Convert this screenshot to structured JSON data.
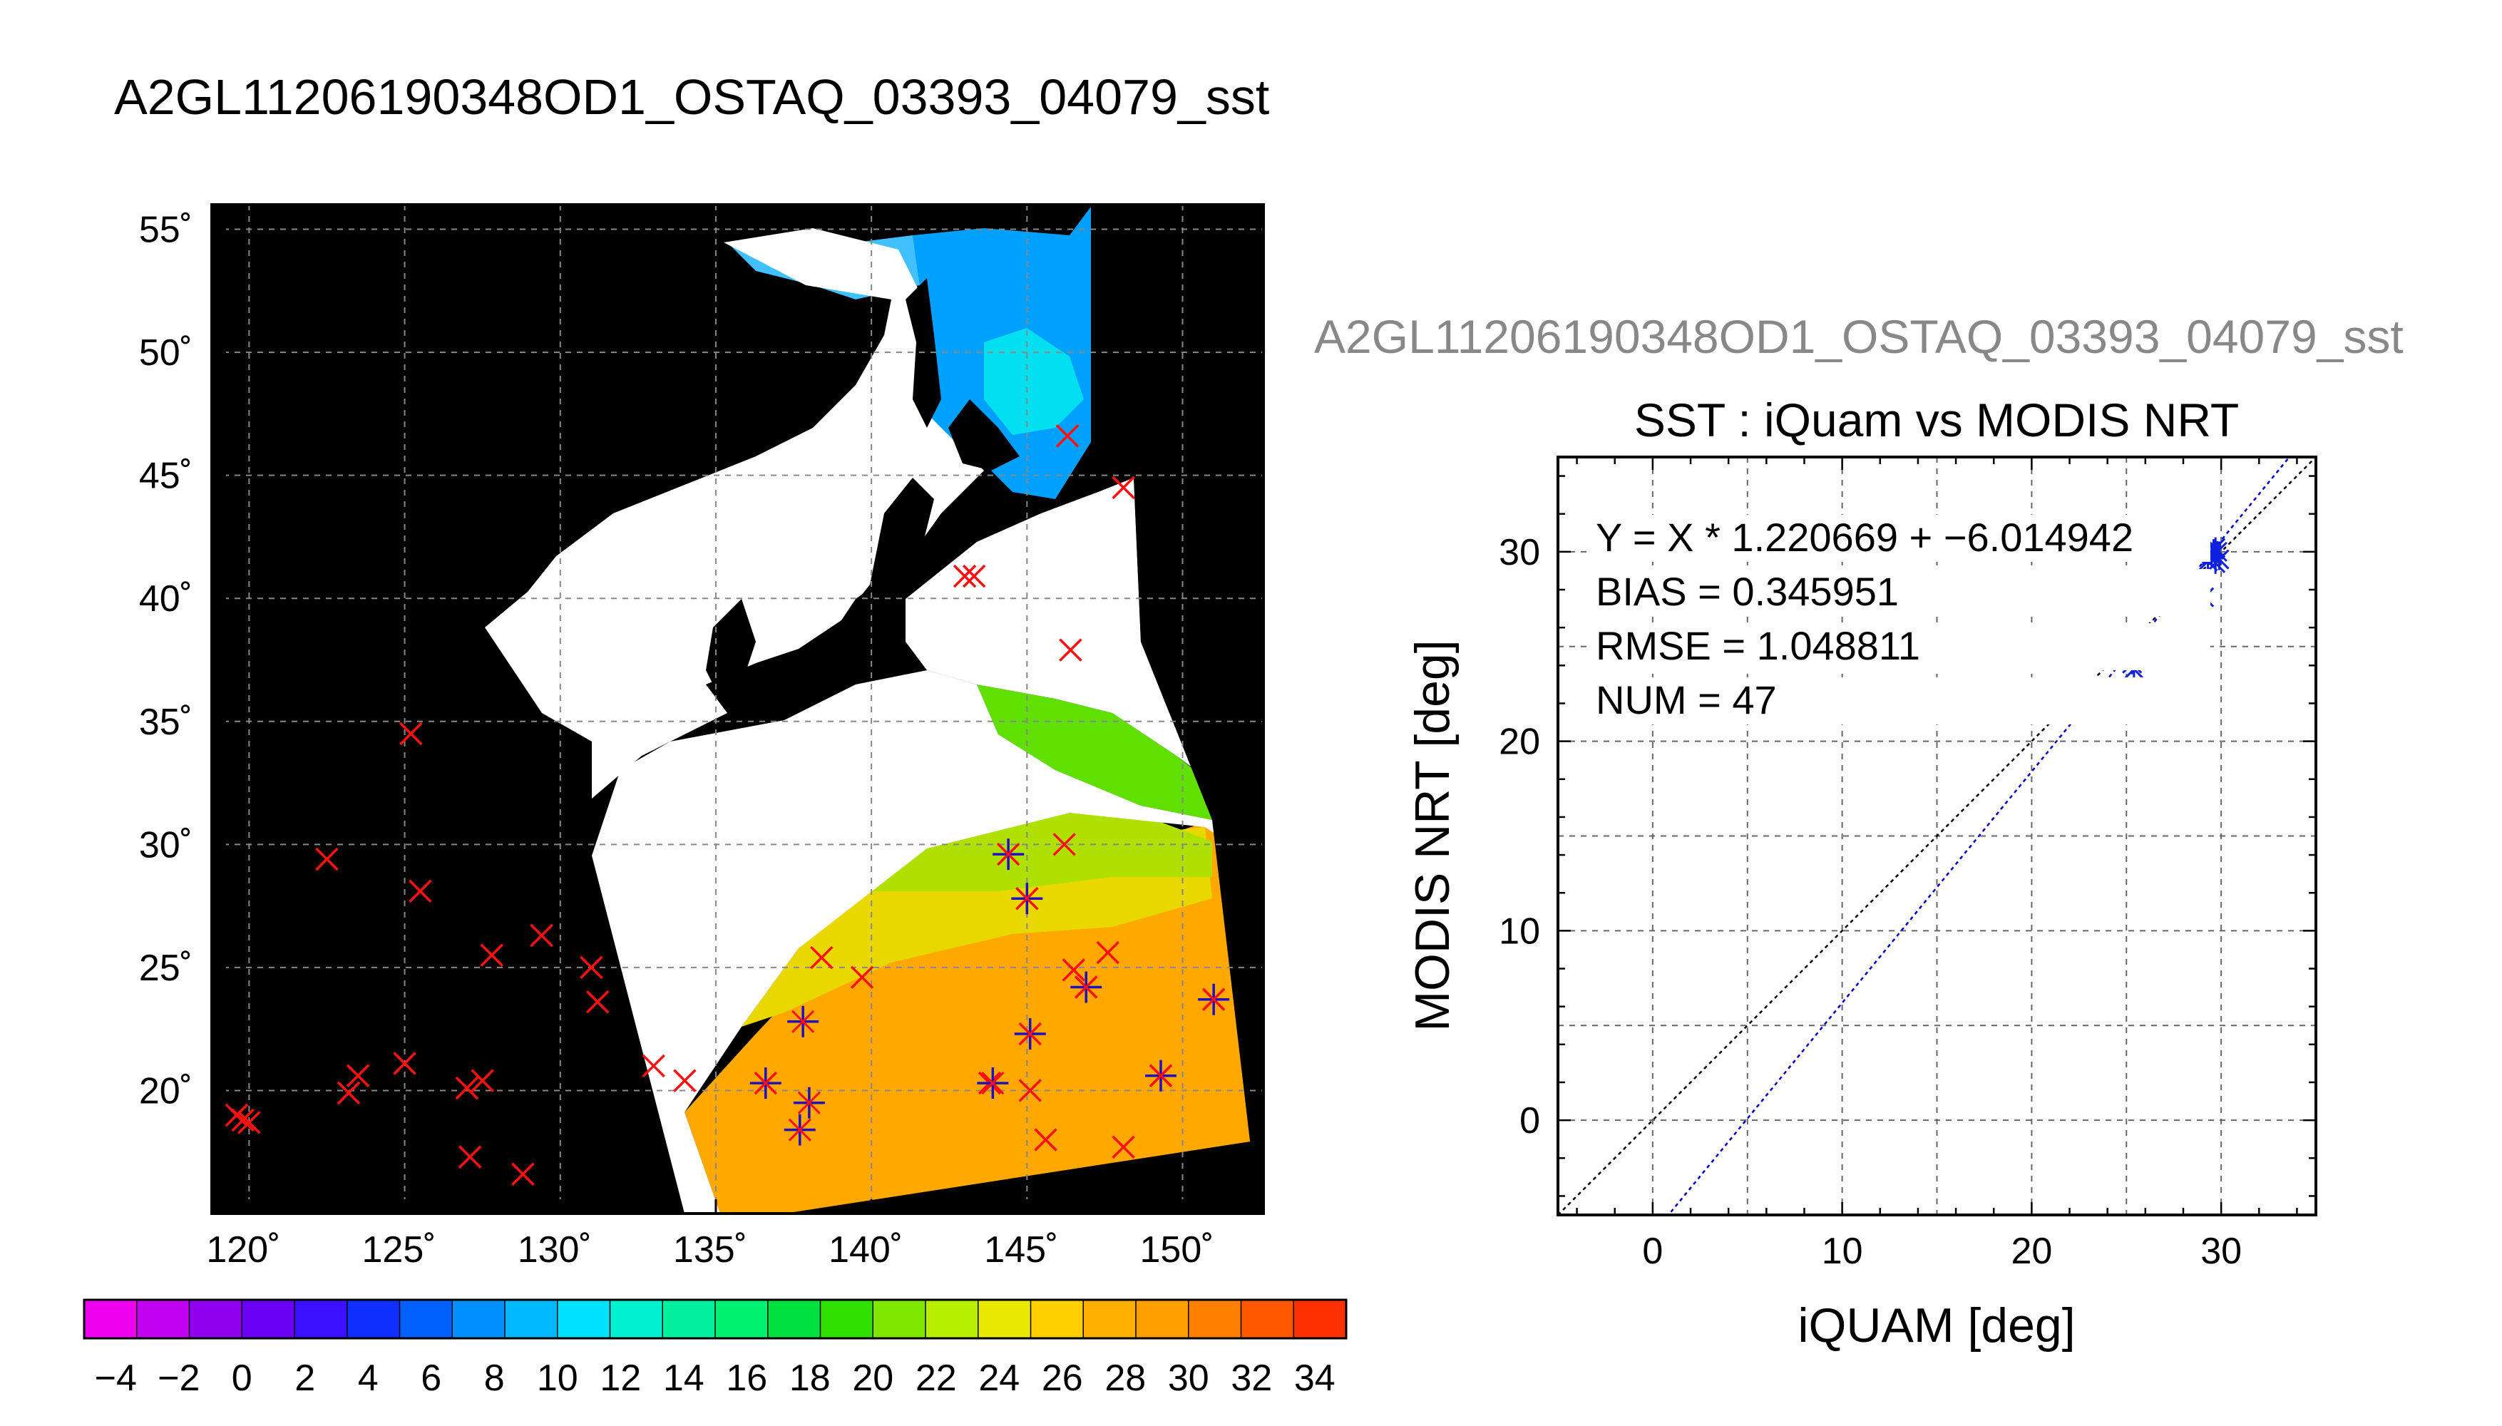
{
  "main_title": "A2GL11206190348OD1_OSTAQ_03393_04079_sst",
  "map": {
    "lat_ticks": [
      55,
      50,
      45,
      40,
      35,
      30,
      25,
      20
    ],
    "lon_ticks": [
      120,
      125,
      130,
      135,
      140,
      145,
      150
    ],
    "deg_symbol": "˚",
    "lon_range": [
      118.8,
      152.6
    ],
    "lat_range": [
      15.0,
      56.0
    ],
    "grid": true,
    "background_color": "#000000",
    "land_color": "#ffffff",
    "buoy_markers_red": [
      [
        119.6,
        19.0
      ],
      [
        119.8,
        18.8
      ],
      [
        120.0,
        18.7
      ],
      [
        122.5,
        29.4
      ],
      [
        123.2,
        19.9
      ],
      [
        123.5,
        20.6
      ],
      [
        125.0,
        21.1
      ],
      [
        125.2,
        34.5
      ],
      [
        125.5,
        28.1
      ],
      [
        127.0,
        20.1
      ],
      [
        127.1,
        17.3
      ],
      [
        127.5,
        20.4
      ],
      [
        127.8,
        25.5
      ],
      [
        128.8,
        16.6
      ],
      [
        129.4,
        26.3
      ],
      [
        131.0,
        25.0
      ],
      [
        131.2,
        23.6
      ],
      [
        133.0,
        21.0
      ],
      [
        134.0,
        20.4
      ],
      [
        136.6,
        20.3
      ],
      [
        138.4,
        25.4
      ],
      [
        139.7,
        24.6
      ],
      [
        143.0,
        40.9
      ],
      [
        143.3,
        40.9
      ],
      [
        143.8,
        20.3
      ],
      [
        144.4,
        29.6
      ],
      [
        145.0,
        27.8
      ],
      [
        145.1,
        22.3
      ],
      [
        145.1,
        20.0
      ],
      [
        145.6,
        18.0
      ],
      [
        146.2,
        30.0
      ],
      [
        146.3,
        46.6
      ],
      [
        146.4,
        37.9
      ],
      [
        146.5,
        24.9
      ],
      [
        146.9,
        24.2
      ],
      [
        147.6,
        25.6
      ],
      [
        148.1,
        44.5
      ],
      [
        148.1,
        17.7
      ],
      [
        149.3,
        20.6
      ],
      [
        151.0,
        23.7
      ]
    ],
    "matched_markers_blue": [
      [
        136.6,
        20.3
      ],
      [
        137.8,
        22.8
      ],
      [
        138.0,
        19.5
      ],
      [
        137.7,
        18.4
      ],
      [
        143.9,
        20.3
      ],
      [
        144.4,
        29.6
      ],
      [
        145.0,
        27.8
      ],
      [
        145.1,
        22.3
      ],
      [
        146.9,
        24.2
      ],
      [
        149.3,
        20.6
      ],
      [
        151.0,
        23.7
      ]
    ]
  },
  "colorbar": {
    "tick_labels": [
      "−4",
      "−2",
      "0",
      "2",
      "4",
      "6",
      "8",
      "10",
      "12",
      "14",
      "16",
      "18",
      "20",
      "22",
      "24",
      "26",
      "28",
      "30",
      "32",
      "34"
    ],
    "vmin": -5,
    "vmax": 35,
    "colors": [
      "#ee00ee",
      "#c000ee",
      "#9000ee",
      "#6a00f4",
      "#3a10ff",
      "#1030ff",
      "#0060ff",
      "#0090ff",
      "#00b8ff",
      "#00e0ff",
      "#00f0d0",
      "#00f0a0",
      "#00f070",
      "#00e040",
      "#30e000",
      "#80e800",
      "#b8ee00",
      "#e8e800",
      "#ffd000",
      "#ffb000",
      "#ffa000",
      "#ff8000",
      "#ff5800",
      "#ff3000"
    ]
  },
  "scatter": {
    "file_label": "A2GL11206190348OD1_OSTAQ_03393_04079_sst",
    "title": "SST : iQuam vs MODIS NRT",
    "xlabel": "iQUAM [deg]",
    "ylabel": "MODIS NRT [deg]",
    "stats": [
      "Y = X * 1.220669 + −6.014942",
      "BIAS = 0.345951",
      "RMSE = 1.048811",
      "NUM = 47"
    ]
  },
  "chart_data": {
    "type": "scatter",
    "title": "SST : iQuam vs MODIS NRT",
    "xlabel": "iQUAM [deg]",
    "ylabel": "MODIS NRT [deg]",
    "xlim": [
      -5,
      35
    ],
    "ylim": [
      -5,
      35
    ],
    "xticks": [
      0,
      10,
      20,
      30
    ],
    "yticks": [
      0,
      10,
      20,
      30
    ],
    "grid": true,
    "points": [
      [
        25.3,
        24.1
      ],
      [
        25.4,
        23.8
      ],
      [
        27.7,
        28.1
      ],
      [
        28.3,
        28.3
      ],
      [
        29.1,
        27.6
      ],
      [
        29.3,
        29.5
      ],
      [
        29.5,
        29.8
      ],
      [
        29.6,
        30.1
      ],
      [
        29.7,
        29.4
      ],
      [
        29.8,
        30.0
      ],
      [
        29.9,
        29.6
      ],
      [
        29.7,
        30.2
      ],
      [
        29.5,
        29.9
      ]
    ],
    "fit_line": {
      "slope": 1.220669,
      "intercept": -6.014942,
      "color": "#0000cc"
    },
    "identity_line": {
      "slope": 1,
      "intercept": 0,
      "color": "#000000"
    },
    "stats": {
      "bias": 0.345951,
      "rmse": 1.048811,
      "num": 47
    }
  }
}
